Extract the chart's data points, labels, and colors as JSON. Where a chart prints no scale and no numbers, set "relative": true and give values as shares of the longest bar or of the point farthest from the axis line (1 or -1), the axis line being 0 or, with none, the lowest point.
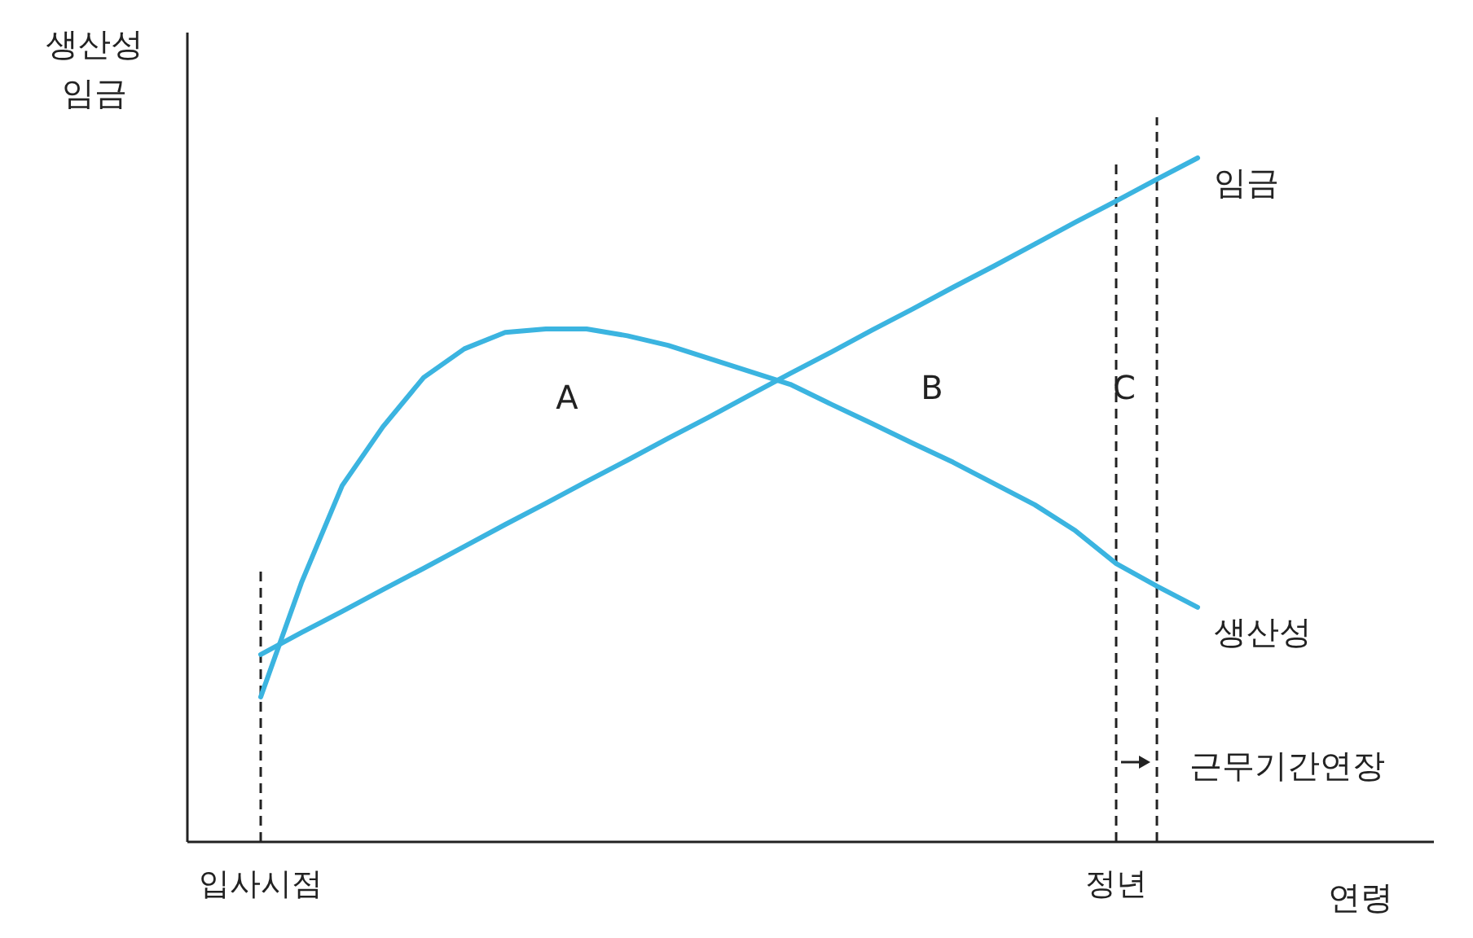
{
  "chart_data": {
    "type": "line",
    "relative": true,
    "ylabel": "생산성\n임금",
    "xlabel": "연령",
    "categories": [
      "입사시점",
      null,
      null,
      null,
      null,
      null,
      null,
      null,
      null,
      null,
      null,
      null,
      null,
      null,
      null,
      null,
      null,
      null,
      null,
      null,
      null,
      "정년",
      null,
      null
    ],
    "series": [
      {
        "name": "임금",
        "color": "#3bb4e0",
        "values": [
          0.274,
          0.306,
          0.337,
          0.369,
          0.4,
          0.432,
          0.464,
          0.495,
          0.527,
          0.558,
          0.59,
          0.621,
          0.653,
          0.685,
          0.716,
          0.748,
          0.779,
          0.811,
          0.842,
          0.874,
          0.906,
          0.937,
          0.969,
          1.0
        ]
      },
      {
        "name": "생산성",
        "color": "#3bb4e0",
        "values": [
          0.212,
          0.379,
          0.521,
          0.607,
          0.679,
          0.721,
          0.745,
          0.75,
          0.75,
          0.74,
          0.726,
          0.707,
          0.688,
          0.669,
          0.64,
          0.612,
          0.583,
          0.555,
          0.524,
          0.493,
          0.455,
          0.407,
          0.374,
          0.343
        ]
      }
    ],
    "ref_lines": [
      {
        "axis": "x",
        "value": "입사시점",
        "line_style": "dashed",
        "color": "#222222"
      },
      {
        "axis": "x",
        "value": "정년",
        "line_style": "dashed",
        "color": "#222222"
      }
    ],
    "annotations": [
      "A",
      "B",
      "C",
      "근무기간연장"
    ]
  }
}
